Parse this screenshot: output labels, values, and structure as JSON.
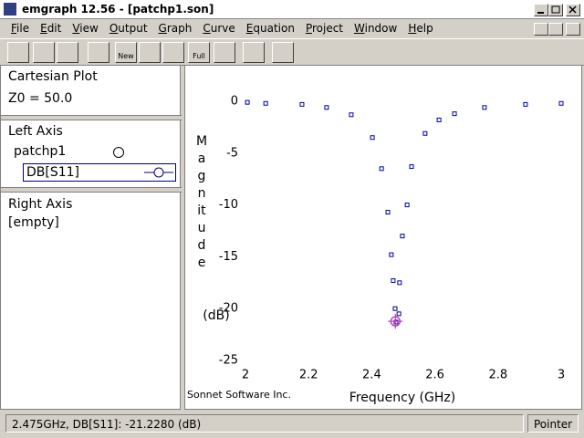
{
  "window": {
    "title": "emgraph 12.56 - [patchp1.son]"
  },
  "menu": [
    "File",
    "Edit",
    "View",
    "Output",
    "Graph",
    "Curve",
    "Equation",
    "Project",
    "Window",
    "Help"
  ],
  "toolbar": {
    "new_label": "New",
    "full_label": "Full"
  },
  "left_panel": {
    "plot_type": "Cartesian Plot",
    "z0": "Z0 = 50.0",
    "left_axis": {
      "title": "Left Axis",
      "file": "patchp1",
      "curve": "DB[S11]"
    },
    "right_axis": {
      "title": "Right Axis",
      "content": "[empty]"
    }
  },
  "chart_data": {
    "type": "line",
    "x_label": "Frequency (GHz)",
    "y_label": "Magnitude",
    "y_unit": "(dB)",
    "credit": "Sonnet Software Inc.",
    "xlim": [
      2,
      3
    ],
    "xticks": [
      2,
      2.2,
      2.4,
      2.6,
      2.8,
      3
    ],
    "ylim": [
      -25,
      0
    ],
    "yticks": [
      0,
      -5,
      -10,
      -15,
      -20,
      -25
    ],
    "series": [
      {
        "name": "DB[S11]",
        "color": "#0000a0",
        "x": [
          2.006,
          2.064,
          2.179,
          2.257,
          2.335,
          2.402,
          2.431,
          2.451,
          2.462,
          2.468,
          2.474,
          2.477,
          2.486,
          2.488,
          2.497,
          2.512,
          2.526,
          2.569,
          2.613,
          2.662,
          2.757,
          2.887,
          3.0
        ],
        "values": [
          -0.1,
          -0.2,
          -0.3,
          -0.6,
          -1.3,
          -3.5,
          -6.5,
          -10.7,
          -14.8,
          -17.3,
          -20.0,
          -21.3,
          -20.5,
          -17.5,
          -13.0,
          -10.0,
          -6.3,
          -3.1,
          -1.8,
          -1.2,
          -0.6,
          -0.3,
          -0.2
        ]
      }
    ],
    "cursor": {
      "x": 2.475,
      "y": -21.228,
      "color": "#c040c0"
    }
  },
  "status": {
    "readout": "2.475GHz, DB[S11]: -21.2280  (dB)",
    "mode": "Pointer"
  }
}
